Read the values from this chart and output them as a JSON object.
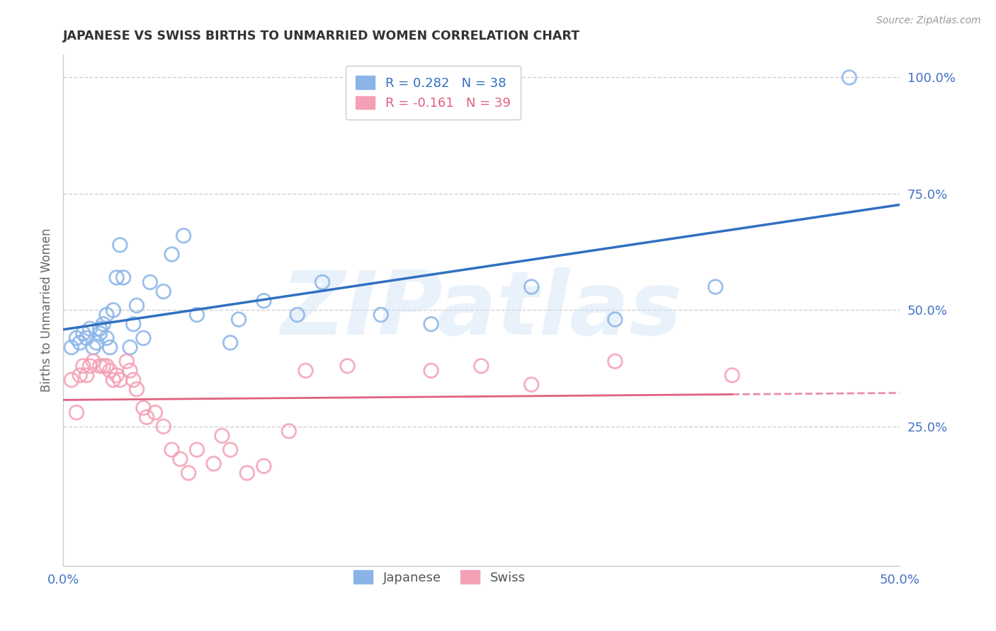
{
  "title": "JAPANESE VS SWISS BIRTHS TO UNMARRIED WOMEN CORRELATION CHART",
  "source": "Source: ZipAtlas.com",
  "ylabel": "Births to Unmarried Women",
  "xlim": [
    0.0,
    0.5
  ],
  "ylim": [
    -0.05,
    1.05
  ],
  "y_ticks_right": [
    0.25,
    0.5,
    0.75,
    1.0
  ],
  "y_tick_labels_right": [
    "25.0%",
    "50.0%",
    "75.0%",
    "100.0%"
  ],
  "grid_color": "#d0d0d0",
  "background_color": "#ffffff",
  "blue_color": "#8ab4e8",
  "pink_color": "#f4a0b5",
  "blue_line_color": "#3070c0",
  "pink_line_color": "#e06080",
  "legend_blue_r": "R = 0.282",
  "legend_blue_n": "N = 38",
  "legend_pink_r": "R = -0.161",
  "legend_pink_n": "N = 39",
  "watermark": "ZIPatlas",
  "japanese_x": [
    0.005,
    0.008,
    0.01,
    0.012,
    0.014,
    0.016,
    0.018,
    0.02,
    0.022,
    0.022,
    0.024,
    0.026,
    0.026,
    0.028,
    0.03,
    0.032,
    0.034,
    0.036,
    0.04,
    0.042,
    0.044,
    0.048,
    0.052,
    0.06,
    0.065,
    0.072,
    0.08,
    0.1,
    0.105,
    0.12,
    0.14,
    0.155,
    0.19,
    0.22,
    0.28,
    0.33,
    0.39,
    0.47
  ],
  "japanese_y": [
    0.42,
    0.44,
    0.43,
    0.45,
    0.44,
    0.46,
    0.42,
    0.43,
    0.45,
    0.46,
    0.47,
    0.49,
    0.44,
    0.42,
    0.5,
    0.57,
    0.64,
    0.57,
    0.42,
    0.47,
    0.51,
    0.44,
    0.56,
    0.54,
    0.62,
    0.66,
    0.49,
    0.43,
    0.48,
    0.52,
    0.49,
    0.56,
    0.49,
    0.47,
    0.55,
    0.48,
    0.55,
    1.0
  ],
  "swiss_x": [
    0.005,
    0.008,
    0.01,
    0.012,
    0.014,
    0.016,
    0.018,
    0.022,
    0.024,
    0.026,
    0.028,
    0.03,
    0.032,
    0.034,
    0.038,
    0.04,
    0.042,
    0.044,
    0.048,
    0.05,
    0.055,
    0.06,
    0.065,
    0.07,
    0.075,
    0.08,
    0.09,
    0.095,
    0.1,
    0.11,
    0.12,
    0.135,
    0.145,
    0.17,
    0.22,
    0.25,
    0.28,
    0.33,
    0.4
  ],
  "swiss_y": [
    0.35,
    0.28,
    0.36,
    0.38,
    0.36,
    0.38,
    0.39,
    0.38,
    0.38,
    0.38,
    0.37,
    0.35,
    0.36,
    0.35,
    0.39,
    0.37,
    0.35,
    0.33,
    0.29,
    0.27,
    0.28,
    0.25,
    0.2,
    0.18,
    0.15,
    0.2,
    0.17,
    0.23,
    0.2,
    0.15,
    0.165,
    0.24,
    0.37,
    0.38,
    0.37,
    0.38,
    0.34,
    0.39,
    0.36
  ]
}
